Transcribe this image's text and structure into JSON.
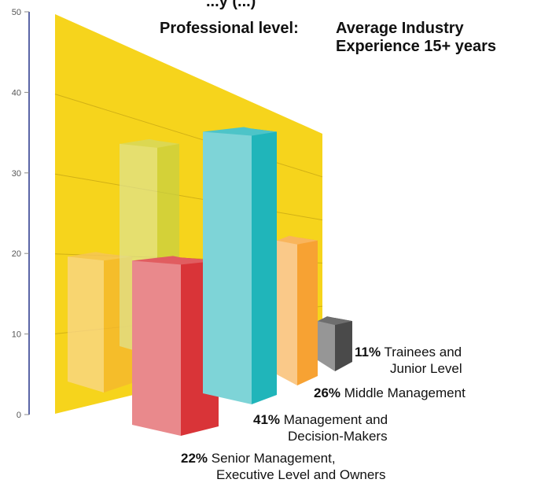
{
  "chart_data": {
    "type": "bar",
    "title": "...y (...)",
    "subtitle": {
      "label": "Professional level:",
      "value_line1": "Average Industry",
      "value_line2": "Experience 15+ years"
    },
    "ylim": [
      0,
      50
    ],
    "yticks": [
      "0",
      "10",
      "20",
      "30",
      "40",
      "50"
    ],
    "series": [
      {
        "values": [
          20,
          34,
          19.5,
          35.5,
          22,
          12
        ]
      }
    ],
    "annotations": [
      {
        "pct": "11%",
        "line1": "Trainees and",
        "line2": "Junior Level"
      },
      {
        "pct": "26%",
        "line1": "Middle Management",
        "line2": ""
      },
      {
        "pct": "41%",
        "line1": "Management and",
        "line2": "Decision-Makers"
      },
      {
        "pct": "22%",
        "line1": "Senior Management,",
        "line2": "Executive Level and Owners"
      }
    ],
    "colors": {
      "wall": "#F6D41C",
      "axis": "#5B66A6",
      "bar_orange_back": "#F5B82E",
      "bar_green_back": "#C7D145",
      "bar_red": "#D93438",
      "bar_teal": "#20B5BA",
      "bar_orange": "#F7A233",
      "bar_gray": "#4A4A4A"
    }
  }
}
